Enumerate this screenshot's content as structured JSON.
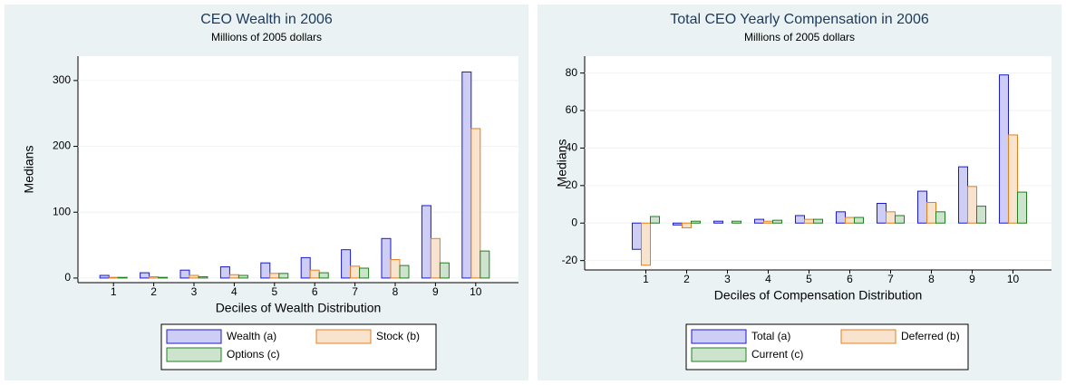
{
  "chart_data": [
    {
      "type": "bar",
      "title": "CEO Wealth in 2006",
      "subtitle": "Millions of 2005 dollars",
      "xlabel": "Deciles of Wealth Distribution",
      "ylabel": "Medians",
      "categories": [
        "1",
        "2",
        "3",
        "4",
        "5",
        "6",
        "7",
        "8",
        "9",
        "10"
      ],
      "series": [
        {
          "name": "Wealth (a)",
          "color": "#1a1ad0",
          "values": [
            4,
            8,
            12,
            17,
            23,
            31,
            43,
            60,
            110,
            313
          ]
        },
        {
          "name": "Stock (b)",
          "color": "#e08020",
          "values": [
            1,
            2,
            4,
            5,
            7,
            12,
            18,
            28,
            60,
            227
          ]
        },
        {
          "name": "Options (c)",
          "color": "#208020",
          "values": [
            1,
            1,
            2,
            4,
            7,
            8,
            15,
            19,
            23,
            41
          ]
        }
      ],
      "ylim": [
        -7,
        337
      ],
      "yticks": [
        0,
        100,
        200,
        300
      ],
      "grid": true
    },
    {
      "type": "bar",
      "title": "Total CEO Yearly Compensation in 2006",
      "subtitle": "Millions of 2005 dollars",
      "xlabel": "Deciles of Compensation Distribution",
      "ylabel": "Medians",
      "categories": [
        "1",
        "2",
        "3",
        "4",
        "5",
        "6",
        "7",
        "8",
        "9",
        "10"
      ],
      "series": [
        {
          "name": "Total (a)",
          "color": "#1a1ad0",
          "values": [
            -14,
            -1,
            1,
            2,
            4,
            6,
            10.5,
            17,
            30,
            79
          ]
        },
        {
          "name": "Deferred (b)",
          "color": "#e08020",
          "values": [
            -22.5,
            -2.5,
            0,
            1,
            2,
            3,
            6,
            11,
            19.5,
            47
          ]
        },
        {
          "name": "Current (c)",
          "color": "#208020",
          "values": [
            3.5,
            1,
            1,
            1.5,
            2,
            3,
            4,
            6,
            9,
            16.5
          ]
        }
      ],
      "ylim": [
        -25,
        89
      ],
      "yticks": [
        -20,
        0,
        20,
        40,
        60,
        80
      ],
      "grid": true
    }
  ]
}
